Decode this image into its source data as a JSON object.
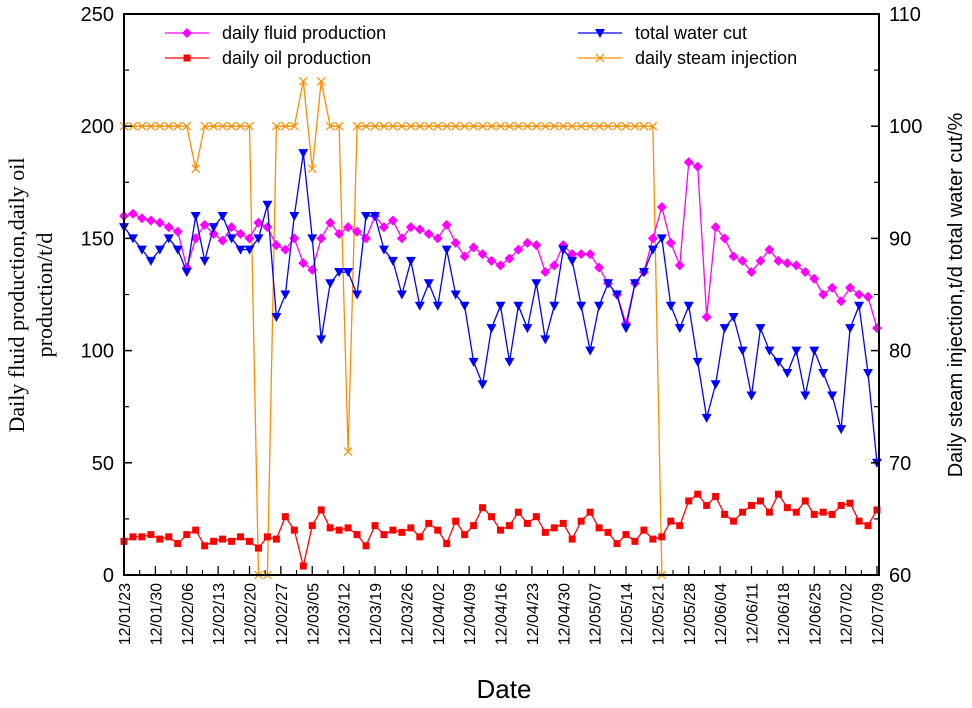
{
  "chart_data": {
    "type": "line",
    "xlabel": "Date",
    "ylabel_left": [
      "Daily fluid production,daily oil",
      "production/t/d"
    ],
    "ylabel_right": "Daily steam injection,t/d total water cut/%",
    "ylim_left": [
      0,
      250
    ],
    "ylim_right": [
      60,
      110
    ],
    "yticks_left": [
      "0",
      "50",
      "100",
      "150",
      "200",
      "250"
    ],
    "yticks_right": [
      "60",
      "70",
      "80",
      "90",
      "100",
      "110"
    ],
    "xticks": [
      "12/01/23",
      "12/01/30",
      "12/02/06",
      "12/02/13",
      "12/02/20",
      "12/02/27",
      "12/03/05",
      "12/03/12",
      "12/03/19",
      "12/03/26",
      "12/04/02",
      "12/04/09",
      "12/04/16",
      "12/04/23",
      "12/04/30",
      "12/05/07",
      "12/05/14",
      "12/05/21",
      "12/05/28",
      "12/06/04",
      "12/06/11",
      "12/06/18",
      "12/06/25",
      "12/07/02",
      "12/07/09"
    ],
    "grid": false,
    "legend_placement": "top",
    "x": [
      "12/01/23",
      "12/01/25",
      "12/01/27",
      "12/01/29",
      "12/01/31",
      "12/02/02",
      "12/02/04",
      "12/02/06",
      "12/02/08",
      "12/02/10",
      "12/02/12",
      "12/02/14",
      "12/02/16",
      "12/02/18",
      "12/02/20",
      "12/02/22",
      "12/02/24",
      "12/02/26",
      "12/02/28",
      "12/03/01",
      "12/03/03",
      "12/03/05",
      "12/03/07",
      "12/03/09",
      "12/03/11",
      "12/03/13",
      "12/03/15",
      "12/03/17",
      "12/03/19",
      "12/03/21",
      "12/03/23",
      "12/03/25",
      "12/03/27",
      "12/03/29",
      "12/03/31",
      "12/04/02",
      "12/04/04",
      "12/04/06",
      "12/04/08",
      "12/04/10",
      "12/04/12",
      "12/04/14",
      "12/04/16",
      "12/04/18",
      "12/04/20",
      "12/04/22",
      "12/04/24",
      "12/04/26",
      "12/04/28",
      "12/04/30",
      "12/05/02",
      "12/05/04",
      "12/05/06",
      "12/05/08",
      "12/05/10",
      "12/05/12",
      "12/05/14",
      "12/05/16",
      "12/05/18",
      "12/05/20",
      "12/05/22",
      "12/05/24",
      "12/05/26",
      "12/05/28",
      "12/05/30",
      "12/06/01",
      "12/06/03",
      "12/06/05",
      "12/06/07",
      "12/06/09",
      "12/06/11",
      "12/06/13",
      "12/06/15",
      "12/06/17",
      "12/06/19",
      "12/06/21",
      "12/06/23",
      "12/06/25",
      "12/06/27",
      "12/06/29",
      "12/07/01",
      "12/07/03",
      "12/07/05",
      "12/07/07",
      "12/07/09"
    ],
    "series": [
      {
        "name": "daily fluid production",
        "axis": "left",
        "color": "#ff00ff",
        "marker": "diamond",
        "values": [
          160,
          161,
          159,
          158,
          157,
          155,
          153,
          137,
          150,
          156,
          152,
          149,
          155,
          152,
          150,
          157,
          155,
          147,
          145,
          150,
          139,
          136,
          150,
          157,
          152,
          155,
          153,
          150,
          160,
          155,
          158,
          150,
          155,
          154,
          152,
          150,
          156,
          148,
          142,
          146,
          143,
          140,
          138,
          141,
          145,
          148,
          147,
          135,
          138,
          147,
          143,
          143,
          143,
          137,
          130,
          125,
          112,
          130,
          135,
          150,
          164,
          148,
          138,
          184,
          182,
          115,
          155,
          150,
          142,
          140,
          135,
          140,
          145,
          140,
          139,
          138,
          135,
          132,
          125,
          128,
          122,
          128,
          125,
          124,
          110
        ]
      },
      {
        "name": "daily oil production",
        "axis": "left",
        "color": "#ff0000",
        "marker": "square",
        "values": [
          15,
          17,
          17,
          18,
          16,
          17,
          14,
          18,
          20,
          13,
          15,
          16,
          15,
          17,
          15,
          12,
          17,
          16,
          26,
          20,
          4,
          22,
          29,
          21,
          20,
          21,
          18,
          13,
          22,
          18,
          20,
          19,
          21,
          17,
          23,
          20,
          14,
          24,
          18,
          22,
          30,
          26,
          20,
          22,
          28,
          23,
          26,
          19,
          21,
          23,
          16,
          24,
          28,
          21,
          19,
          14,
          18,
          15,
          20,
          16,
          17,
          24,
          22,
          33,
          36,
          31,
          35,
          27,
          24,
          28,
          31,
          33,
          28,
          36,
          30,
          28,
          33,
          27,
          28,
          27,
          31,
          32,
          24,
          22,
          29
        ]
      },
      {
        "name": "total water cut",
        "axis": "right",
        "color": "#0000ff",
        "marker": "triangle-down",
        "values": [
          91,
          90,
          89,
          88,
          89,
          90,
          89,
          87,
          92,
          88,
          91,
          92,
          90,
          89,
          89,
          90,
          93,
          83,
          85,
          92,
          97.6,
          90,
          81,
          86,
          87,
          87,
          85,
          92,
          92,
          89,
          88,
          85,
          88,
          84,
          86,
          84,
          89,
          85,
          84,
          79,
          77,
          82,
          84,
          79,
          84,
          82,
          86,
          81,
          84,
          89,
          88,
          84,
          80,
          84,
          86,
          85,
          82,
          86,
          87,
          89,
          90,
          84,
          82,
          84,
          79,
          74,
          77,
          82,
          83,
          80,
          76,
          82,
          80,
          79,
          78,
          80,
          76,
          80,
          78,
          76,
          73,
          82,
          84,
          78,
          70
        ]
      },
      {
        "name": "daily steam injection",
        "axis": "left",
        "color": "#ff8c00",
        "marker": "x",
        "values": [
          200,
          200,
          200,
          200,
          200,
          200,
          200,
          200,
          181,
          200,
          200,
          200,
          200,
          200,
          200,
          0,
          0,
          200,
          200,
          200,
          220,
          181,
          220,
          200,
          200,
          55,
          200,
          200,
          200,
          200,
          200,
          200,
          200,
          200,
          200,
          200,
          200,
          200,
          200,
          200,
          200,
          200,
          200,
          200,
          200,
          200,
          200,
          200,
          200,
          200,
          200,
          200,
          200,
          200,
          200,
          200,
          200,
          200,
          200,
          200,
          0,
          null,
          null,
          null,
          null,
          null,
          null,
          null,
          null,
          null,
          null,
          null,
          null,
          null,
          null,
          null,
          null,
          null,
          null,
          null,
          null,
          null,
          null,
          null,
          null
        ]
      }
    ]
  }
}
